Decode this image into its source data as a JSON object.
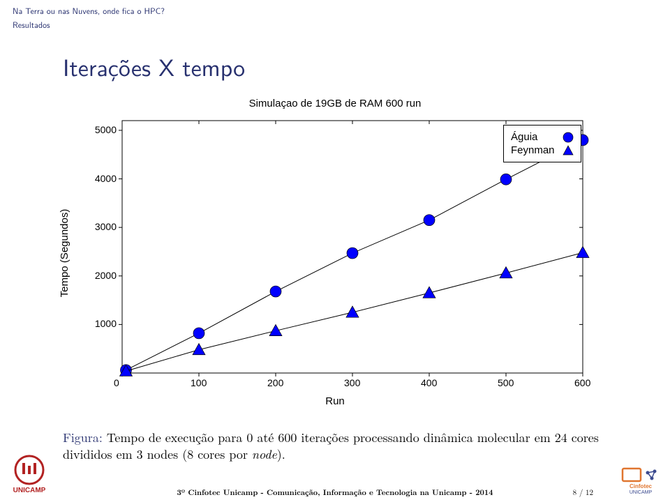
{
  "header": {
    "line1": "Na Terra ou nas Nuvens,  onde fica o HPC?",
    "line2": "Resultados"
  },
  "title": "Iterações X tempo",
  "chart": {
    "type": "line",
    "title": "Simulaçao de 19GB de RAM 600 run",
    "xlabel": "Run",
    "ylabel": "Tempo (Segundos)",
    "xlim": [
      0,
      600
    ],
    "ylim": [
      0,
      5200
    ],
    "xtick_step": 100,
    "yticks": [
      1000,
      2000,
      3000,
      4000,
      5000
    ],
    "xticks": [
      0,
      100,
      200,
      300,
      400,
      500,
      600
    ],
    "background_color": "#ffffff",
    "frame_color": "#000000",
    "line_color": "#000000",
    "line_width": 1,
    "marker_size_circle": 8,
    "marker_size_triangle": 9,
    "series": [
      {
        "name": "Águia",
        "color": "#0000ff",
        "marker": "circle",
        "x": [
          5,
          100,
          200,
          300,
          400,
          500,
          600
        ],
        "y": [
          60,
          820,
          1680,
          2470,
          3150,
          3990,
          4800
        ]
      },
      {
        "name": "Feynman",
        "color": "#0000ff",
        "marker": "triangle",
        "x": [
          5,
          100,
          200,
          300,
          400,
          500,
          600
        ],
        "y": [
          40,
          480,
          870,
          1250,
          1650,
          2060,
          2480
        ]
      }
    ],
    "legend": {
      "labels": [
        "Águia",
        "Feynman"
      ]
    }
  },
  "caption": {
    "fig": "Figura:",
    "text1": " Tempo de execução para 0 até 600 iterações processando dinâmica molecular em 24 cores divididos em 3 nodes (8 cores por ",
    "node": "node",
    "text2": ")."
  },
  "footer": "3º Cinfotec Unicamp - Comunicação, Informação e Tecnologia na Unicamp - 2014",
  "page": "8 / 12",
  "logos": {
    "left": "UNICAMP",
    "right": "Cinfotec UNICAMP"
  },
  "colors": {
    "heading": "#28316f",
    "marker_blue": "#0000ff",
    "logo_red": "#b22222",
    "logo_orange": "#e0752f",
    "logo_navy": "#3b4a8f"
  }
}
